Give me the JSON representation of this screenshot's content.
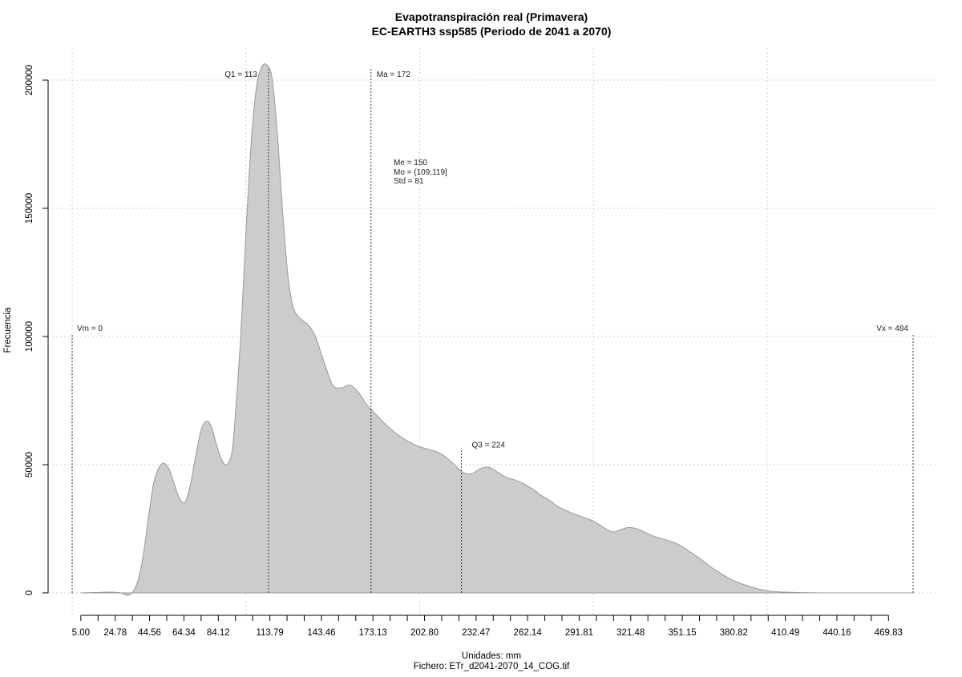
{
  "chart_data": {
    "type": "area",
    "title": "Evapotranspiración real (Primavera)",
    "subtitle": "EC-EARTH3 ssp585 (Periodo de 2041 a 2070)",
    "xlabel": "Unidades: mm",
    "footer": "Fichero: ETr_d2041-2070_14_COG.tif",
    "ylabel": "Frecuencia",
    "xlim": [
      -1.5,
      489
    ],
    "ylim": [
      0,
      205000
    ],
    "grid": true,
    "x_ticks": [
      5.0,
      24.78,
      44.56,
      64.34,
      84.12,
      113.79,
      143.46,
      173.13,
      202.8,
      232.47,
      262.14,
      291.81,
      321.48,
      351.15,
      380.82,
      410.49,
      440.16,
      469.83
    ],
    "x_tick_labels": [
      "5.00",
      "24.78",
      "44.56",
      "64.34",
      "84.12",
      "113.79",
      "143.46",
      "173.13",
      "202.80",
      "232.47",
      "262.14",
      "291.81",
      "321.48",
      "351.15",
      "380.82",
      "410.49",
      "440.16",
      "469.83"
    ],
    "y_ticks": [
      0,
      50000,
      100000,
      150000,
      200000
    ],
    "y_tick_labels": [
      "0",
      "50000",
      "100000",
      "150000",
      "200000"
    ],
    "x_gridlines": [
      0,
      100,
      200,
      300,
      400
    ],
    "fill_color": "#cccccc",
    "line_color": "#999999",
    "x": [
      5,
      15,
      22,
      28,
      32,
      35,
      38,
      41,
      44,
      47,
      50,
      53,
      56,
      59,
      62,
      65,
      68,
      71,
      74,
      77,
      80,
      83,
      86,
      89,
      92,
      94,
      97,
      100,
      103,
      106,
      109,
      112,
      115,
      118,
      121,
      124,
      127,
      130,
      133,
      136,
      140,
      145,
      150,
      155,
      160,
      165,
      170,
      175,
      180,
      185,
      190,
      195,
      200,
      205,
      210,
      215,
      220,
      225,
      230,
      235,
      240,
      245,
      250,
      255,
      260,
      265,
      270,
      275,
      280,
      290,
      300,
      310,
      315,
      320,
      325,
      330,
      335,
      340,
      345,
      350,
      360,
      370,
      380,
      390,
      400,
      410,
      420,
      430,
      440,
      450,
      460,
      470,
      480,
      484
    ],
    "y": [
      0,
      200,
      300,
      0,
      -1000,
      500,
      5000,
      15000,
      30000,
      43000,
      49000,
      50500,
      48000,
      42000,
      36500,
      35500,
      42000,
      53000,
      63000,
      67000,
      65000,
      58000,
      52000,
      50000,
      55000,
      70000,
      100000,
      140000,
      175000,
      197000,
      205000,
      206000,
      201000,
      180000,
      150000,
      125000,
      112000,
      108000,
      106000,
      104500,
      100000,
      90000,
      81000,
      80000,
      81000,
      78000,
      73000,
      69500,
      66000,
      63000,
      60500,
      58500,
      57000,
      56000,
      55000,
      53000,
      50000,
      47000,
      46500,
      48500,
      49000,
      47000,
      45000,
      44000,
      42500,
      40500,
      38000,
      36000,
      33500,
      30500,
      28000,
      24000,
      24500,
      25500,
      25000,
      23500,
      22000,
      21000,
      20000,
      18500,
      14000,
      9000,
      5000,
      2500,
      800,
      300,
      100,
      0,
      0,
      0,
      0,
      0,
      0,
      0
    ],
    "annotations": [
      {
        "label": "Vm = 0",
        "x": 0,
        "y_top": 101000
      },
      {
        "label": "Q1 = 113",
        "x": 113,
        "y_top": 205000
      },
      {
        "label": "Ma = 172",
        "x": 172,
        "y_top": 205000
      },
      {
        "label": "Q3 = 224",
        "x": 224,
        "y_top": 55500
      },
      {
        "label": "Vx = 484",
        "x": 484,
        "y_top": 101000
      }
    ],
    "stats": {
      "mean": "Me = 150",
      "mode": "Mo = (109,119]",
      "std": "Std = 81"
    }
  }
}
